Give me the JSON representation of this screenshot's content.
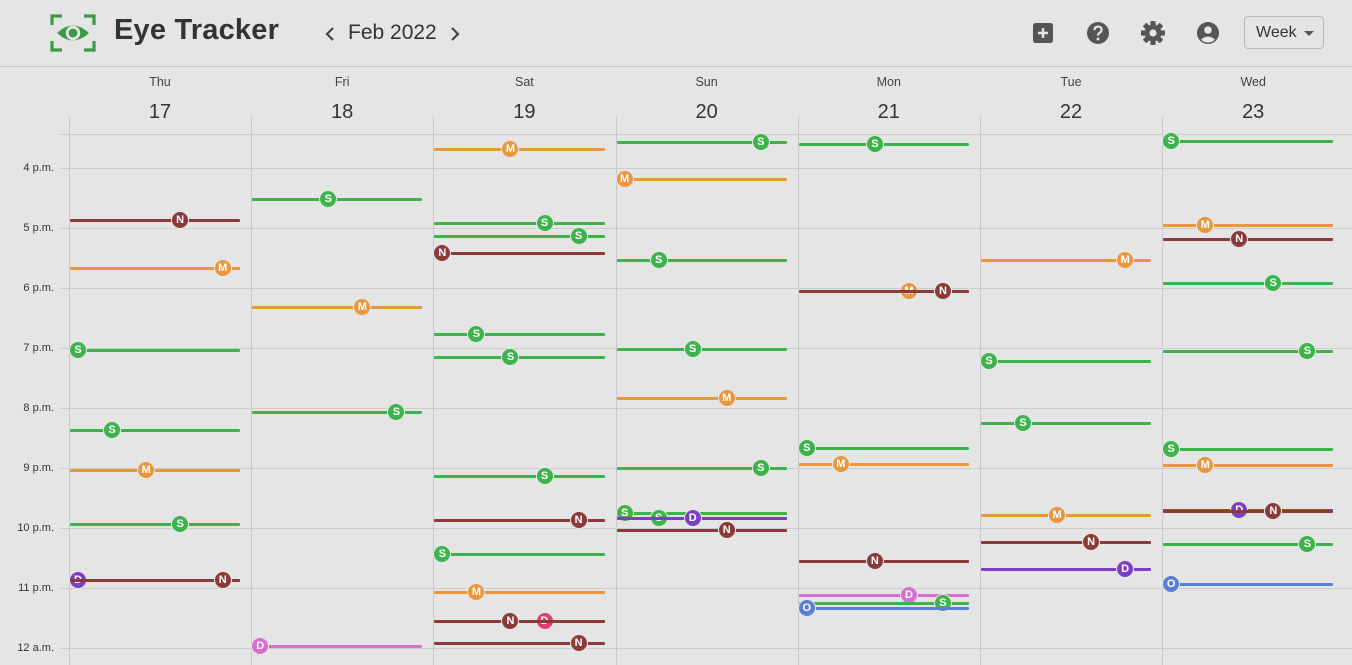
{
  "app": {
    "title": "Eye Tracker"
  },
  "nav": {
    "month": "Feb 2022",
    "view": "Week"
  },
  "colors": {
    "S": "#3cb44b",
    "M": "#e8973c",
    "N": "#8b3a3a",
    "D_purple": "#7b3fc4",
    "D_pink": "#d86fd0",
    "D_red": "#dd3f6e",
    "O": "#5b7fd4"
  },
  "days": [
    {
      "name": "Thu",
      "num": "17"
    },
    {
      "name": "Fri",
      "num": "18"
    },
    {
      "name": "Sat",
      "num": "19"
    },
    {
      "name": "Sun",
      "num": "20"
    },
    {
      "name": "Mon",
      "num": "21"
    },
    {
      "name": "Tue",
      "num": "22"
    },
    {
      "name": "Wed",
      "num": "23"
    }
  ],
  "hours": [
    "4 p.m.",
    "5 p.m.",
    "6 p.m.",
    "7 p.m.",
    "8 p.m.",
    "9 p.m.",
    "10 p.m.",
    "11 p.m.",
    "12 a.m."
  ],
  "events": [
    {
      "day": 0,
      "time": "16:52",
      "letter": "N",
      "color": "N",
      "badgeAt": 0.65
    },
    {
      "day": 0,
      "time": "17:40",
      "letter": "M",
      "color": "M",
      "badgeAt": 0.9
    },
    {
      "day": 0,
      "time": "19:02",
      "letter": "S",
      "color": "S",
      "badgeAt": 0.05
    },
    {
      "day": 0,
      "time": "20:22",
      "letter": "S",
      "color": "S",
      "badgeAt": 0.25
    },
    {
      "day": 0,
      "time": "21:02",
      "letter": "M",
      "color": "M",
      "badgeAt": 0.45
    },
    {
      "day": 0,
      "time": "21:56",
      "letter": "S",
      "color": "S",
      "badgeAt": 0.65
    },
    {
      "day": 0,
      "time": "22:52",
      "letter": "D",
      "color": "D_purple",
      "badgeAt": 0.05
    },
    {
      "day": 0,
      "time": "22:52",
      "letter": "N",
      "color": "N",
      "badgeAt": 0.9
    },
    {
      "day": 1,
      "time": "16:31",
      "letter": "S",
      "color": "S",
      "badgeAt": 0.45
    },
    {
      "day": 1,
      "time": "18:19",
      "letter": "M",
      "color": "M",
      "badgeAt": 0.65
    },
    {
      "day": 1,
      "time": "20:04",
      "letter": "S",
      "color": "S",
      "badgeAt": 0.85
    },
    {
      "day": 1,
      "time": "23:58",
      "letter": "D",
      "color": "D_pink",
      "badgeAt": 0.05
    },
    {
      "day": 2,
      "time": "15:41",
      "letter": "M",
      "color": "M",
      "badgeAt": 0.45
    },
    {
      "day": 2,
      "time": "16:55",
      "letter": "S",
      "color": "S",
      "badgeAt": 0.65
    },
    {
      "day": 2,
      "time": "17:08",
      "letter": "S",
      "color": "S",
      "badgeAt": 0.85
    },
    {
      "day": 2,
      "time": "17:25",
      "letter": "N",
      "color": "N",
      "badgeAt": 0.05
    },
    {
      "day": 2,
      "time": "18:46",
      "letter": "S",
      "color": "S",
      "badgeAt": 0.25
    },
    {
      "day": 2,
      "time": "19:09",
      "letter": "S",
      "color": "S",
      "badgeAt": 0.45
    },
    {
      "day": 2,
      "time": "21:08",
      "letter": "S",
      "color": "S",
      "badgeAt": 0.65
    },
    {
      "day": 2,
      "time": "21:52",
      "letter": "N",
      "color": "N",
      "badgeAt": 0.85
    },
    {
      "day": 2,
      "time": "22:26",
      "letter": "S",
      "color": "S",
      "badgeAt": 0.05
    },
    {
      "day": 2,
      "time": "23:04",
      "letter": "M",
      "color": "M",
      "badgeAt": 0.25
    },
    {
      "day": 2,
      "time": "23:33",
      "letter": "D",
      "color": "D_red",
      "badgeAt": 0.65
    },
    {
      "day": 2,
      "time": "23:33",
      "letter": "N",
      "color": "N",
      "badgeAt": 0.45
    },
    {
      "day": 2,
      "time": "23:55",
      "letter": "N",
      "color": "N",
      "badgeAt": 0.85
    },
    {
      "day": 3,
      "time": "15:34",
      "letter": "S",
      "color": "S",
      "badgeAt": 0.85
    },
    {
      "day": 3,
      "time": "16:11",
      "letter": "M",
      "color": "M",
      "badgeAt": 0.05
    },
    {
      "day": 3,
      "time": "17:32",
      "letter": "S",
      "color": "S",
      "badgeAt": 0.25
    },
    {
      "day": 3,
      "time": "19:01",
      "letter": "S",
      "color": "S",
      "badgeAt": 0.45
    },
    {
      "day": 3,
      "time": "19:50",
      "letter": "M",
      "color": "M",
      "badgeAt": 0.65
    },
    {
      "day": 3,
      "time": "21:00",
      "letter": "S",
      "color": "S",
      "badgeAt": 0.85
    },
    {
      "day": 3,
      "time": "21:45",
      "letter": "S",
      "color": "S",
      "badgeAt": 0.05
    },
    {
      "day": 3,
      "time": "21:50",
      "letter": "S",
      "color": "S",
      "badgeAt": 0.25
    },
    {
      "day": 3,
      "time": "21:50",
      "letter": "D",
      "color": "D_purple",
      "badgeAt": 0.45
    },
    {
      "day": 3,
      "time": "22:02",
      "letter": "N",
      "color": "N",
      "badgeAt": 0.65
    },
    {
      "day": 4,
      "time": "15:36",
      "letter": "S",
      "color": "S",
      "badgeAt": 0.45
    },
    {
      "day": 4,
      "time": "18:03",
      "letter": "M",
      "color": "M",
      "badgeAt": 0.65
    },
    {
      "day": 4,
      "time": "18:03",
      "letter": "N",
      "color": "N",
      "badgeAt": 0.85
    },
    {
      "day": 4,
      "time": "20:40",
      "letter": "S",
      "color": "S",
      "badgeAt": 0.05
    },
    {
      "day": 4,
      "time": "20:56",
      "letter": "M",
      "color": "M",
      "badgeAt": 0.25
    },
    {
      "day": 4,
      "time": "22:33",
      "letter": "N",
      "color": "N",
      "badgeAt": 0.45
    },
    {
      "day": 4,
      "time": "23:07",
      "letter": "D",
      "color": "D_pink",
      "badgeAt": 0.65
    },
    {
      "day": 4,
      "time": "23:15",
      "letter": "S",
      "color": "S",
      "badgeAt": 0.85
    },
    {
      "day": 4,
      "time": "23:20",
      "letter": "O",
      "color": "O",
      "badgeAt": 0.05
    },
    {
      "day": 5,
      "time": "17:32",
      "letter": "M",
      "color": "M",
      "badgeAt": 0.85
    },
    {
      "day": 5,
      "time": "19:13",
      "letter": "S",
      "color": "S",
      "badgeAt": 0.05
    },
    {
      "day": 5,
      "time": "20:15",
      "letter": "S",
      "color": "S",
      "badgeAt": 0.25
    },
    {
      "day": 5,
      "time": "21:47",
      "letter": "M",
      "color": "M",
      "badgeAt": 0.45
    },
    {
      "day": 5,
      "time": "22:14",
      "letter": "N",
      "color": "N",
      "badgeAt": 0.65
    },
    {
      "day": 5,
      "time": "22:41",
      "letter": "D",
      "color": "D_purple",
      "badgeAt": 0.85
    },
    {
      "day": 6,
      "time": "15:33",
      "letter": "S",
      "color": "S",
      "badgeAt": 0.05
    },
    {
      "day": 6,
      "time": "16:57",
      "letter": "M",
      "color": "M",
      "badgeAt": 0.25
    },
    {
      "day": 6,
      "time": "17:11",
      "letter": "N",
      "color": "N",
      "badgeAt": 0.45
    },
    {
      "day": 6,
      "time": "17:55",
      "letter": "S",
      "color": "S",
      "badgeAt": 0.65
    },
    {
      "day": 6,
      "time": "19:03",
      "letter": "S",
      "color": "S",
      "badgeAt": 0.85
    },
    {
      "day": 6,
      "time": "20:41",
      "letter": "S",
      "color": "S",
      "badgeAt": 0.05
    },
    {
      "day": 6,
      "time": "20:57",
      "letter": "M",
      "color": "M",
      "badgeAt": 0.25
    },
    {
      "day": 6,
      "time": "21:42",
      "letter": "D",
      "color": "D_purple",
      "badgeAt": 0.45
    },
    {
      "day": 6,
      "time": "21:43",
      "letter": "N",
      "color": "N",
      "badgeAt": 0.65
    },
    {
      "day": 6,
      "time": "22:16",
      "letter": "S",
      "color": "S",
      "badgeAt": 0.85
    },
    {
      "day": 6,
      "time": "22:56",
      "letter": "O",
      "color": "O",
      "badgeAt": 0.05
    }
  ]
}
